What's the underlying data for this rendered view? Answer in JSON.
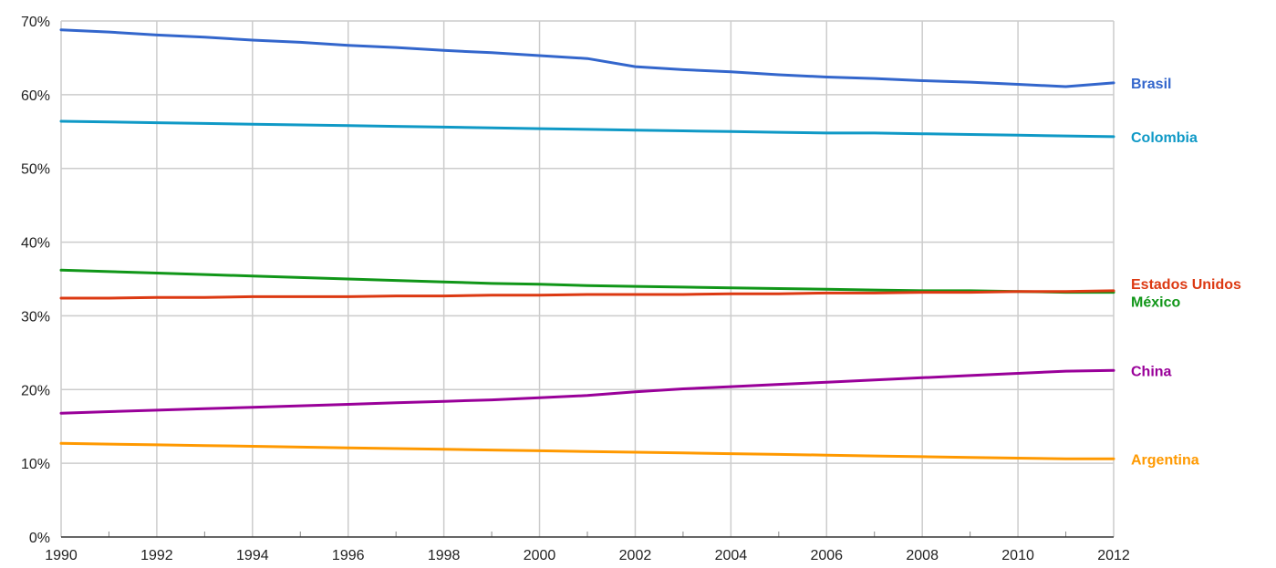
{
  "chart_data": {
    "type": "line",
    "title": "",
    "xlabel": "",
    "ylabel": "",
    "x": [
      1990,
      1991,
      1992,
      1993,
      1994,
      1995,
      1996,
      1997,
      1998,
      1999,
      2000,
      2001,
      2002,
      2003,
      2004,
      2005,
      2006,
      2007,
      2008,
      2009,
      2010,
      2011,
      2012
    ],
    "x_ticks": [
      "1990",
      "1992",
      "1994",
      "1996",
      "1998",
      "2000",
      "2002",
      "2004",
      "2006",
      "2008",
      "2010",
      "2012"
    ],
    "xlim": [
      1990,
      2012
    ],
    "ylim": [
      0,
      70
    ],
    "y_ticks": [
      0,
      10,
      20,
      30,
      40,
      50,
      60,
      70
    ],
    "y_tick_labels": [
      "0%",
      "10%",
      "20%",
      "30%",
      "40%",
      "50%",
      "60%",
      "70%"
    ],
    "y_unit": "%",
    "grid": true,
    "legend": "right (labels at line ends)",
    "series": [
      {
        "name": "Brasil",
        "color": "#3366cc",
        "values": [
          68.8,
          68.5,
          68.1,
          67.8,
          67.4,
          67.1,
          66.7,
          66.4,
          66.0,
          65.7,
          65.3,
          64.9,
          63.8,
          63.4,
          63.1,
          62.7,
          62.4,
          62.2,
          61.9,
          61.7,
          61.4,
          61.1,
          61.6
        ]
      },
      {
        "name": "Colombia",
        "color": "#0f99c6",
        "values": [
          56.4,
          56.3,
          56.2,
          56.1,
          56.0,
          55.9,
          55.8,
          55.7,
          55.6,
          55.5,
          55.4,
          55.3,
          55.2,
          55.1,
          55.0,
          54.9,
          54.8,
          54.8,
          54.7,
          54.6,
          54.5,
          54.4,
          54.3
        ]
      },
      {
        "name": "México",
        "color": "#109618",
        "values": [
          36.2,
          36.0,
          35.8,
          35.6,
          35.4,
          35.2,
          35.0,
          34.8,
          34.6,
          34.4,
          34.3,
          34.1,
          34.0,
          33.9,
          33.8,
          33.7,
          33.6,
          33.5,
          33.4,
          33.4,
          33.3,
          33.2,
          33.2
        ]
      },
      {
        "name": "Estados Unidos",
        "color": "#dc3912",
        "values": [
          32.4,
          32.4,
          32.5,
          32.5,
          32.6,
          32.6,
          32.6,
          32.7,
          32.7,
          32.8,
          32.8,
          32.9,
          32.9,
          32.9,
          33.0,
          33.0,
          33.1,
          33.1,
          33.2,
          33.2,
          33.3,
          33.3,
          33.4
        ]
      },
      {
        "name": "China",
        "color": "#990099",
        "values": [
          16.8,
          17.0,
          17.2,
          17.4,
          17.6,
          17.8,
          18.0,
          18.2,
          18.4,
          18.6,
          18.9,
          19.2,
          19.7,
          20.1,
          20.4,
          20.7,
          21.0,
          21.3,
          21.6,
          21.9,
          22.2,
          22.5,
          22.6
        ]
      },
      {
        "name": "Argentina",
        "color": "#ff9900",
        "values": [
          12.7,
          12.6,
          12.5,
          12.4,
          12.3,
          12.2,
          12.1,
          12.0,
          11.9,
          11.8,
          11.7,
          11.6,
          11.5,
          11.4,
          11.3,
          11.2,
          11.1,
          11.0,
          10.9,
          10.8,
          10.7,
          10.6,
          10.6
        ]
      }
    ]
  }
}
